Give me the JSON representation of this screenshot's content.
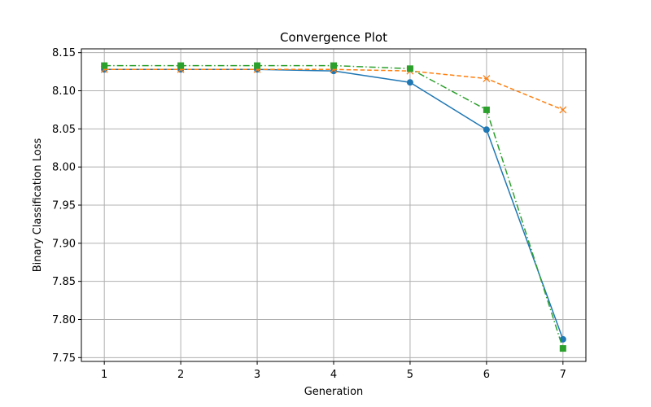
{
  "chart_data": {
    "type": "line",
    "title": "Convergence Plot",
    "xlabel": "Generation",
    "ylabel": "Binary Classification Loss",
    "x": [
      1,
      2,
      3,
      4,
      5,
      6,
      7
    ],
    "xlim": [
      0.7,
      7.3
    ],
    "ylim": [
      7.745,
      8.155
    ],
    "xticks": [
      1,
      2,
      3,
      4,
      5,
      6,
      7
    ],
    "yticks": [
      7.75,
      7.8,
      7.85,
      7.9,
      7.95,
      8.0,
      8.05,
      8.1,
      8.15
    ],
    "ytick_labels": [
      "7.75",
      "7.80",
      "7.85",
      "7.90",
      "7.95",
      "8.00",
      "8.05",
      "8.10",
      "8.15"
    ],
    "grid": true,
    "series": [
      {
        "color": "#1f77b4",
        "line_style": "solid",
        "marker": "circle",
        "values": [
          8.128,
          8.128,
          8.128,
          8.126,
          8.111,
          8.049,
          7.774
        ]
      },
      {
        "color": "#ff7f0e",
        "line_style": "dashed",
        "marker": "x",
        "values": [
          8.128,
          8.128,
          8.128,
          8.128,
          8.126,
          8.116,
          8.075
        ]
      },
      {
        "color": "#2ca02c",
        "line_style": "dashdot",
        "marker": "square",
        "values": [
          8.133,
          8.133,
          8.133,
          8.133,
          8.129,
          8.075,
          7.762
        ]
      }
    ]
  }
}
